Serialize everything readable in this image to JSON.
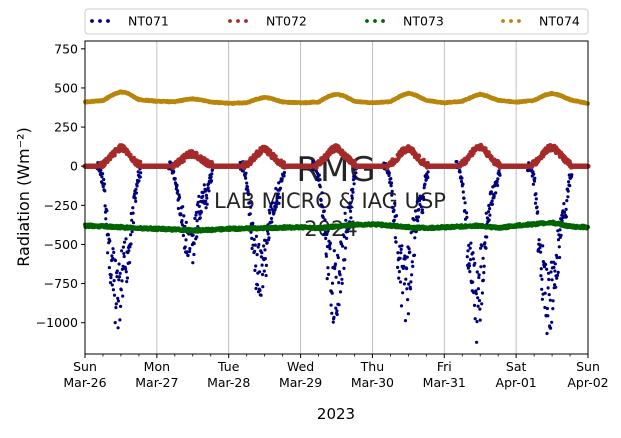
{
  "chart_data": {
    "type": "scatter",
    "xlabel": "2023",
    "ylabel": "Radiation (Wm⁻²)",
    "ylim": [
      -1200,
      800
    ],
    "yticks": [
      750,
      500,
      250,
      0,
      -250,
      -500,
      -750,
      -1000
    ],
    "ytick_labels": [
      "750",
      "500",
      "250",
      "0",
      "−250",
      "−500",
      "−750",
      "−1000"
    ],
    "xlim": [
      0,
      7
    ],
    "x_major_ticks": [
      {
        "x": 0,
        "line1": "Sun",
        "line2": "Mar-26"
      },
      {
        "x": 1,
        "line1": "Mon",
        "line2": "Mar-27"
      },
      {
        "x": 2,
        "line1": "Tue",
        "line2": "Mar-28"
      },
      {
        "x": 3,
        "line1": "Wed",
        "line2": "Mar-29"
      },
      {
        "x": 4,
        "line1": "Thu",
        "line2": "Mar-30"
      },
      {
        "x": 5,
        "line1": "Fri",
        "line2": "Mar-31"
      },
      {
        "x": 6,
        "line1": "Sat",
        "line2": "Apr-01"
      },
      {
        "x": 7,
        "line1": "Sun",
        "line2": "Apr-02"
      }
    ],
    "grid": "vertical",
    "legend_placement": "top",
    "watermark": [
      "RMG",
      "LAB MICRO & IAG USP",
      "2024"
    ],
    "series": [
      {
        "name": "NT071",
        "color": "#00007f",
        "x": [
          0.0,
          0.2,
          0.26,
          0.3,
          0.35,
          0.4,
          0.45,
          0.5,
          0.55,
          0.6,
          0.65,
          0.7,
          0.74,
          0.8,
          1.0,
          1.2,
          1.26,
          1.3,
          1.35,
          1.4,
          1.45,
          1.5,
          1.55,
          1.6,
          1.65,
          1.7,
          1.74,
          1.8,
          2.0,
          2.2,
          2.26,
          2.3,
          2.35,
          2.4,
          2.45,
          2.5,
          2.55,
          2.6,
          2.65,
          2.7,
          2.74,
          2.8,
          3.0,
          3.2,
          3.26,
          3.3,
          3.35,
          3.4,
          3.45,
          3.5,
          3.55,
          3.6,
          3.65,
          3.7,
          3.74,
          3.8,
          4.0,
          4.2,
          4.26,
          4.3,
          4.35,
          4.4,
          4.45,
          4.5,
          4.55,
          4.6,
          4.65,
          4.7,
          4.74,
          4.8,
          5.0,
          5.2,
          5.26,
          5.3,
          5.35,
          5.4,
          5.45,
          5.5,
          5.55,
          5.6,
          5.65,
          5.7,
          5.74,
          5.8,
          6.0,
          6.2,
          6.26,
          6.3,
          6.35,
          6.4,
          6.45,
          6.5,
          6.55,
          6.6,
          6.65,
          6.7,
          6.74,
          6.8,
          7.0
        ],
        "y": [
          0,
          0,
          -150,
          -420,
          -700,
          -900,
          -1000,
          -950,
          -800,
          -650,
          -450,
          -220,
          -80,
          0,
          0,
          0,
          -120,
          -250,
          -400,
          -550,
          -650,
          -600,
          -450,
          -300,
          -250,
          -230,
          -100,
          0,
          0,
          0,
          -150,
          -400,
          -600,
          -750,
          -850,
          -700,
          -500,
          -350,
          -250,
          -200,
          -90,
          0,
          0,
          0,
          -100,
          -300,
          -550,
          -750,
          -900,
          -950,
          -800,
          -600,
          -420,
          -300,
          -100,
          0,
          0,
          0,
          -120,
          -350,
          -600,
          -850,
          -920,
          -850,
          -650,
          -450,
          -300,
          -250,
          -100,
          0,
          0,
          0,
          -140,
          -420,
          -700,
          -900,
          -1000,
          -900,
          -650,
          -400,
          -250,
          -200,
          -90,
          0,
          0,
          0,
          -150,
          -450,
          -750,
          -950,
          -1000,
          -950,
          -800,
          -600,
          -400,
          -300,
          -120,
          0,
          0
        ]
      },
      {
        "name": "NT072",
        "color": "#a52a2a",
        "x": [
          0.0,
          0.2,
          0.3,
          0.4,
          0.45,
          0.5,
          0.55,
          0.6,
          0.7,
          0.8,
          1.0,
          1.2,
          1.3,
          1.4,
          1.45,
          1.5,
          1.55,
          1.6,
          1.7,
          1.8,
          2.0,
          2.2,
          2.3,
          2.4,
          2.45,
          2.5,
          2.55,
          2.6,
          2.7,
          2.8,
          3.0,
          3.2,
          3.3,
          3.4,
          3.45,
          3.5,
          3.55,
          3.6,
          3.7,
          3.8,
          4.0,
          4.2,
          4.3,
          4.4,
          4.45,
          4.5,
          4.55,
          4.6,
          4.7,
          4.8,
          5.0,
          5.2,
          5.3,
          5.4,
          5.45,
          5.5,
          5.55,
          5.6,
          5.7,
          5.8,
          6.0,
          6.2,
          6.3,
          6.4,
          6.45,
          6.5,
          6.55,
          6.6,
          6.7,
          6.8,
          7.0
        ],
        "y": [
          0,
          0,
          30,
          80,
          105,
          120,
          110,
          80,
          30,
          0,
          0,
          0,
          25,
          60,
          75,
          80,
          70,
          55,
          20,
          0,
          0,
          0,
          30,
          80,
          100,
          110,
          95,
          70,
          25,
          0,
          0,
          0,
          35,
          90,
          110,
          120,
          100,
          75,
          30,
          0,
          0,
          0,
          30,
          85,
          105,
          115,
          100,
          70,
          25,
          0,
          0,
          0,
          35,
          95,
          120,
          125,
          110,
          80,
          30,
          0,
          0,
          0,
          35,
          95,
          115,
          120,
          105,
          80,
          30,
          0,
          0
        ]
      },
      {
        "name": "NT073",
        "color": "#006400",
        "x": [
          0.0,
          0.25,
          0.5,
          0.75,
          1.0,
          1.25,
          1.5,
          1.75,
          2.0,
          2.25,
          2.5,
          2.75,
          3.0,
          3.25,
          3.5,
          3.75,
          4.0,
          4.25,
          4.5,
          4.75,
          5.0,
          5.25,
          5.5,
          5.75,
          6.0,
          6.25,
          6.5,
          6.75,
          7.0
        ],
        "y": [
          -380,
          -385,
          -390,
          -395,
          -400,
          -405,
          -410,
          -408,
          -400,
          -398,
          -395,
          -392,
          -390,
          -395,
          -385,
          -375,
          -370,
          -380,
          -390,
          -395,
          -390,
          -385,
          -380,
          -395,
          -380,
          -370,
          -360,
          -385,
          -390
        ]
      },
      {
        "name": "NT074",
        "color": "#b8860b",
        "x": [
          0.0,
          0.25,
          0.4,
          0.5,
          0.6,
          0.75,
          1.0,
          1.25,
          1.4,
          1.5,
          1.6,
          1.75,
          2.0,
          2.25,
          2.4,
          2.5,
          2.6,
          2.75,
          3.0,
          3.25,
          3.4,
          3.5,
          3.6,
          3.75,
          4.0,
          4.25,
          4.4,
          4.5,
          4.6,
          4.75,
          5.0,
          5.25,
          5.4,
          5.5,
          5.6,
          5.75,
          6.0,
          6.25,
          6.4,
          6.5,
          6.6,
          6.75,
          7.0
        ],
        "y": [
          410,
          420,
          460,
          475,
          465,
          425,
          415,
          412,
          425,
          430,
          425,
          410,
          402,
          405,
          430,
          440,
          432,
          410,
          405,
          410,
          450,
          460,
          450,
          415,
          405,
          412,
          450,
          465,
          455,
          420,
          405,
          415,
          445,
          460,
          448,
          420,
          410,
          420,
          455,
          465,
          455,
          425,
          400
        ]
      }
    ]
  }
}
